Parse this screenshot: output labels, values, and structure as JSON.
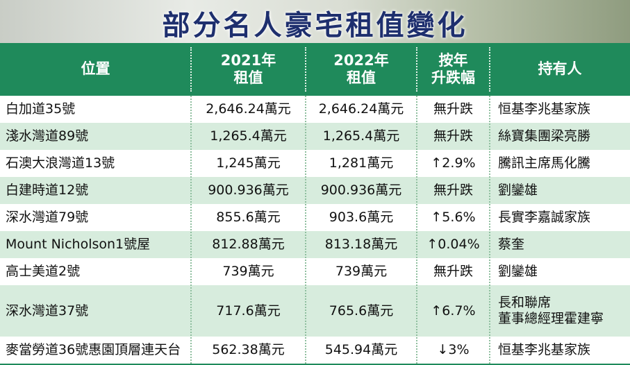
{
  "title": "部分名人豪宅租值變化",
  "table": {
    "header": [
      [
        "位置"
      ],
      [
        "2021年",
        "租值"
      ],
      [
        "2022年",
        "租值"
      ],
      [
        "按年",
        "升跌幅"
      ],
      [
        "持有人"
      ]
    ],
    "rows": [
      [
        "白加道35號",
        "2,646.24萬元",
        "2,646.24萬元",
        "無升跌",
        "恒基李兆基家族"
      ],
      [
        "淺水灣道89號",
        "1,265.4萬元",
        "1,265.4萬元",
        "無升跌",
        "絲寶集團梁亮勝"
      ],
      [
        "石澳大浪灣道13號",
        "1,245萬元",
        "1,281萬元",
        "↑2.9%",
        "騰訊主席馬化騰"
      ],
      [
        "白建時道12號",
        "900.936萬元",
        "900.936萬元",
        "無升跌",
        "劉鑾雄"
      ],
      [
        "深水灣道79號",
        "855.6萬元",
        "903.6萬元",
        "↑5.6%",
        "長實李嘉誠家族"
      ],
      [
        "Mount Nicholson1號屋",
        "812.88萬元",
        "813.18萬元",
        "↑0.04%",
        "蔡奎"
      ],
      [
        "高士美道2號",
        "739萬元",
        "739萬元",
        "無升跌",
        "劉鑾雄"
      ],
      [
        "深水灣道37號",
        "717.6萬元",
        "765.6萬元",
        "↑6.7%",
        [
          "長和聯席",
          "董事總經理霍建寧"
        ]
      ],
      [
        "麥當勞道36號惠園頂層連天台",
        "562.38萬元",
        "545.94萬元",
        "↓3%",
        "恒基李兆基家族"
      ]
    ]
  }
}
